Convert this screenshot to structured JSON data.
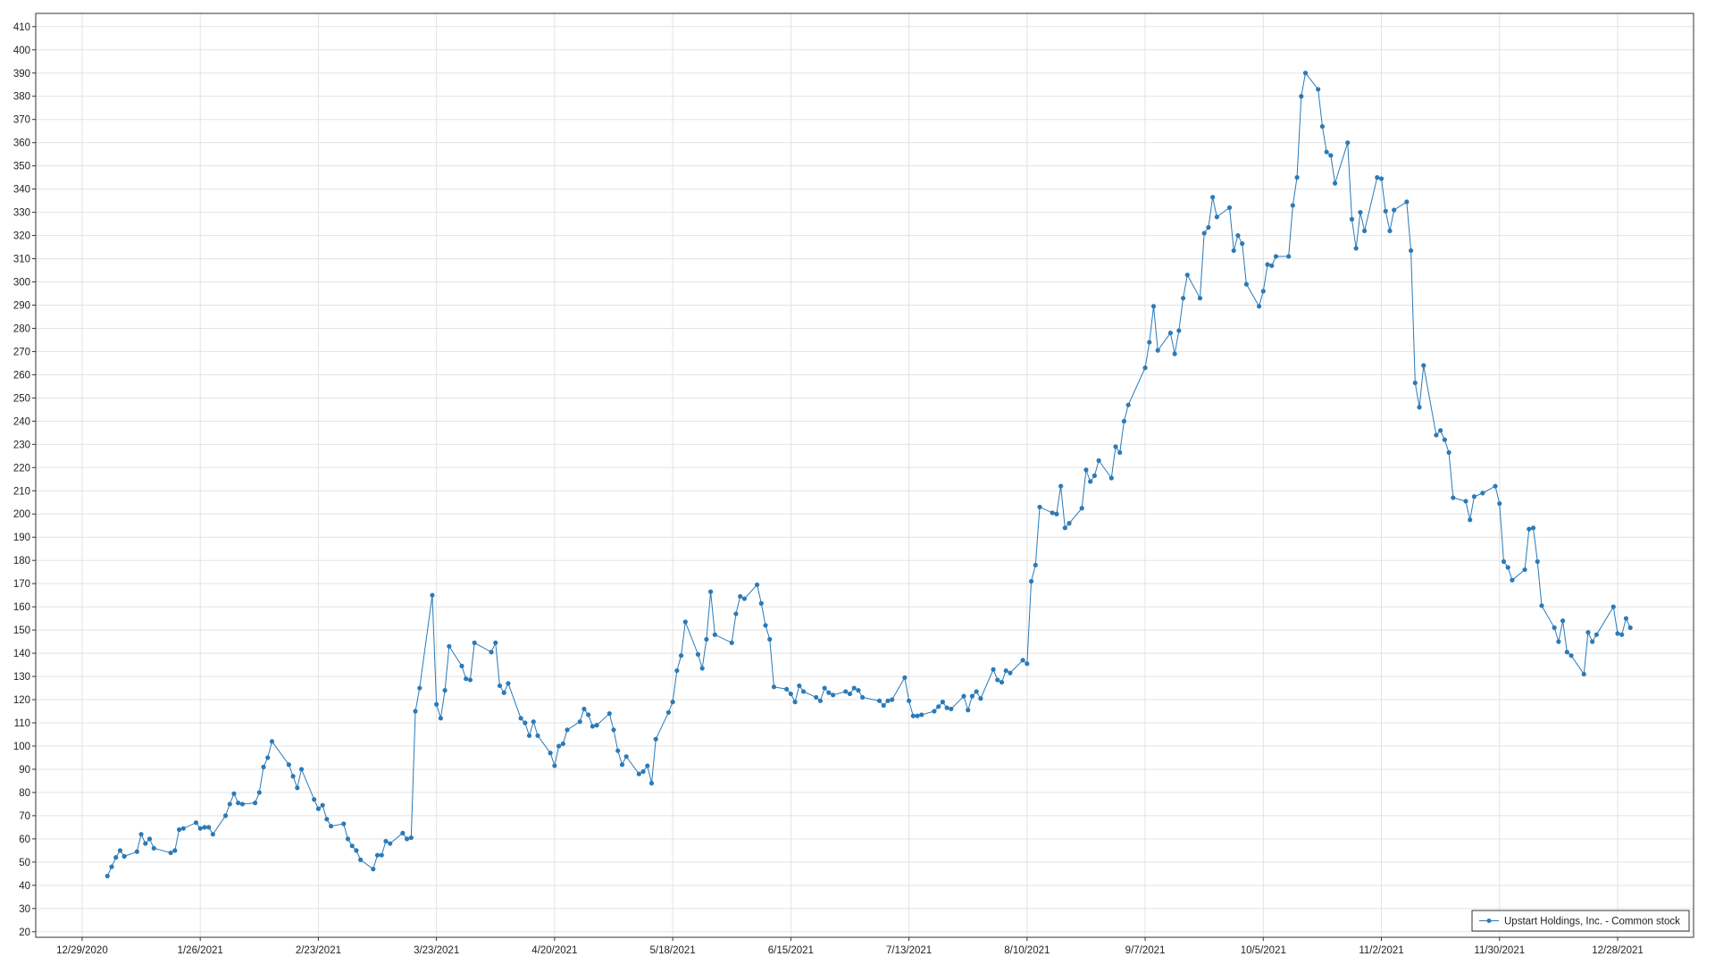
{
  "chart_data": {
    "type": "line",
    "grid": true,
    "legend": "lower right",
    "xlim": [
      "12/18/2020",
      "1/15/2022"
    ],
    "xticks": [
      "12/29/2020",
      "1/26/2021",
      "2/23/2021",
      "3/23/2021",
      "4/20/2021",
      "5/18/2021",
      "6/15/2021",
      "7/13/2021",
      "8/10/2021",
      "9/7/2021",
      "10/5/2021",
      "11/2/2021",
      "11/30/2021",
      "12/28/2021"
    ],
    "ylim": [
      17.6,
      415.7
    ],
    "yticks": [
      20,
      30,
      40,
      50,
      60,
      70,
      80,
      90,
      100,
      110,
      120,
      130,
      140,
      150,
      160,
      170,
      180,
      190,
      200,
      210,
      220,
      230,
      240,
      250,
      260,
      270,
      280,
      290,
      300,
      310,
      320,
      330,
      340,
      350,
      360,
      370,
      380,
      390,
      400,
      410
    ],
    "x": [
      "1/4/2021",
      "1/5/2021",
      "1/6/2021",
      "1/7/2021",
      "1/8/2021",
      "1/11/2021",
      "1/12/2021",
      "1/13/2021",
      "1/14/2021",
      "1/15/2021",
      "1/19/2021",
      "1/20/2021",
      "1/21/2021",
      "1/22/2021",
      "1/25/2021",
      "1/26/2021",
      "1/27/2021",
      "1/28/2021",
      "1/29/2021",
      "2/1/2021",
      "2/2/2021",
      "2/3/2021",
      "2/4/2021",
      "2/5/2021",
      "2/8/2021",
      "2/9/2021",
      "2/10/2021",
      "2/11/2021",
      "2/12/2021",
      "2/16/2021",
      "2/17/2021",
      "2/18/2021",
      "2/19/2021",
      "2/22/2021",
      "2/23/2021",
      "2/24/2021",
      "2/25/2021",
      "2/26/2021",
      "3/1/2021",
      "3/2/2021",
      "3/3/2021",
      "3/4/2021",
      "3/5/2021",
      "3/8/2021",
      "3/9/2021",
      "3/10/2021",
      "3/11/2021",
      "3/12/2021",
      "3/15/2021",
      "3/16/2021",
      "3/17/2021",
      "3/18/2021",
      "3/19/2021",
      "3/22/2021",
      "3/23/2021",
      "3/24/2021",
      "3/25/2021",
      "3/26/2021",
      "3/29/2021",
      "3/30/2021",
      "3/31/2021",
      "4/1/2021",
      "4/5/2021",
      "4/6/2021",
      "4/7/2021",
      "4/8/2021",
      "4/9/2021",
      "4/12/2021",
      "4/13/2021",
      "4/14/2021",
      "4/15/2021",
      "4/16/2021",
      "4/19/2021",
      "4/20/2021",
      "4/21/2021",
      "4/22/2021",
      "4/23/2021",
      "4/26/2021",
      "4/27/2021",
      "4/28/2021",
      "4/29/2021",
      "4/30/2021",
      "5/3/2021",
      "5/4/2021",
      "5/5/2021",
      "5/6/2021",
      "5/7/2021",
      "5/10/2021",
      "5/11/2021",
      "5/12/2021",
      "5/13/2021",
      "5/14/2021",
      "5/17/2021",
      "5/18/2021",
      "5/19/2021",
      "5/20/2021",
      "5/21/2021",
      "5/24/2021",
      "5/25/2021",
      "5/26/2021",
      "5/27/2021",
      "5/28/2021",
      "6/1/2021",
      "6/2/2021",
      "6/3/2021",
      "6/4/2021",
      "6/7/2021",
      "6/8/2021",
      "6/9/2021",
      "6/10/2021",
      "6/11/2021",
      "6/14/2021",
      "6/15/2021",
      "6/16/2021",
      "6/17/2021",
      "6/18/2021",
      "6/21/2021",
      "6/22/2021",
      "6/23/2021",
      "6/24/2021",
      "6/25/2021",
      "6/28/2021",
      "6/29/2021",
      "6/30/2021",
      "7/1/2021",
      "7/2/2021",
      "7/6/2021",
      "7/7/2021",
      "7/8/2021",
      "7/9/2021",
      "7/12/2021",
      "7/13/2021",
      "7/14/2021",
      "7/15/2021",
      "7/16/2021",
      "7/19/2021",
      "7/20/2021",
      "7/21/2021",
      "7/22/2021",
      "7/23/2021",
      "7/26/2021",
      "7/27/2021",
      "7/28/2021",
      "7/29/2021",
      "7/30/2021",
      "8/2/2021",
      "8/3/2021",
      "8/4/2021",
      "8/5/2021",
      "8/6/2021",
      "8/9/2021",
      "8/10/2021",
      "8/11/2021",
      "8/12/2021",
      "8/13/2021",
      "8/16/2021",
      "8/17/2021",
      "8/18/2021",
      "8/19/2021",
      "8/20/2021",
      "8/23/2021",
      "8/24/2021",
      "8/25/2021",
      "8/26/2021",
      "8/27/2021",
      "8/30/2021",
      "8/31/2021",
      "9/1/2021",
      "9/2/2021",
      "9/3/2021",
      "9/7/2021",
      "9/8/2021",
      "9/9/2021",
      "9/10/2021",
      "9/13/2021",
      "9/14/2021",
      "9/15/2021",
      "9/16/2021",
      "9/17/2021",
      "9/20/2021",
      "9/21/2021",
      "9/22/2021",
      "9/23/2021",
      "9/24/2021",
      "9/27/2021",
      "9/28/2021",
      "9/29/2021",
      "9/30/2021",
      "10/1/2021",
      "10/4/2021",
      "10/5/2021",
      "10/6/2021",
      "10/7/2021",
      "10/8/2021",
      "10/11/2021",
      "10/12/2021",
      "10/13/2021",
      "10/14/2021",
      "10/15/2021",
      "10/18/2021",
      "10/19/2021",
      "10/20/2021",
      "10/21/2021",
      "10/22/2021",
      "10/25/2021",
      "10/26/2021",
      "10/27/2021",
      "10/28/2021",
      "10/29/2021",
      "11/1/2021",
      "11/2/2021",
      "11/3/2021",
      "11/4/2021",
      "11/5/2021",
      "11/8/2021",
      "11/9/2021",
      "11/10/2021",
      "11/11/2021",
      "11/12/2021",
      "11/15/2021",
      "11/16/2021",
      "11/17/2021",
      "11/18/2021",
      "11/19/2021",
      "11/22/2021",
      "11/23/2021",
      "11/24/2021",
      "11/26/2021",
      "11/29/2021",
      "11/30/2021",
      "12/1/2021",
      "12/2/2021",
      "12/3/2021",
      "12/6/2021",
      "12/7/2021",
      "12/8/2021",
      "12/9/2021",
      "12/10/2021",
      "12/13/2021",
      "12/14/2021",
      "12/15/2021",
      "12/16/2021",
      "12/17/2021",
      "12/20/2021",
      "12/21/2021",
      "12/22/2021",
      "12/23/2021",
      "12/27/2021",
      "12/28/2021",
      "12/29/2021",
      "12/30/2021",
      "12/31/2021"
    ],
    "series": [
      {
        "name": "Upstart Holdings, Inc. - Common stock",
        "color": "#2a7ab8",
        "values": [
          44,
          48,
          52,
          55,
          52.5,
          54.5,
          62,
          58,
          60,
          56,
          54,
          55,
          64,
          64.5,
          67,
          64.5,
          65,
          65,
          62,
          70,
          75,
          79.5,
          75.5,
          75,
          75.5,
          80,
          91,
          95,
          102,
          92,
          87,
          82,
          90,
          77,
          73,
          74.5,
          68.5,
          65.5,
          66.5,
          60,
          57,
          55,
          51,
          47,
          53,
          53,
          59,
          58,
          62.5,
          60,
          60.5,
          115,
          125,
          165,
          118,
          112,
          124,
          143,
          134.5,
          129,
          128.5,
          144.5,
          140.5,
          144.5,
          126,
          123,
          127,
          112,
          110,
          104.5,
          110.5,
          104.5,
          97,
          91.5,
          100,
          101,
          107,
          110.5,
          116,
          113.5,
          108.5,
          109,
          114,
          107,
          98,
          92,
          95.5,
          88,
          89,
          91.5,
          84,
          103,
          114.5,
          119,
          132.5,
          139,
          153.5,
          139.5,
          133.5,
          146,
          166.5,
          148,
          144.5,
          157,
          164.5,
          163.5,
          169.5,
          161.5,
          152,
          146,
          125.5,
          124.5,
          122.5,
          119,
          126,
          123.5,
          121,
          119.5,
          125,
          123,
          122,
          123.5,
          122.5,
          125,
          124,
          121,
          119.5,
          117.5,
          119.5,
          120,
          129.5,
          119.5,
          113,
          113,
          113.5,
          115,
          117,
          119,
          116.5,
          116,
          121.5,
          115.5,
          121.5,
          123.5,
          120.5,
          133,
          128.5,
          127.5,
          132.5,
          131.5,
          137,
          135.5,
          171,
          178,
          203,
          200.5,
          200,
          212,
          194,
          196,
          202.5,
          219,
          214,
          216.5,
          223,
          215.5,
          229,
          226.5,
          240,
          247,
          263,
          274,
          289.5,
          270.5,
          278,
          269,
          279,
          293,
          303,
          293,
          321,
          323.5,
          336.5,
          328,
          332,
          313.5,
          320,
          316.5,
          299,
          289.5,
          296,
          307.5,
          307,
          311,
          311,
          333,
          345,
          380,
          390,
          383,
          367,
          356,
          354.5,
          342.5,
          360,
          327,
          314.5,
          330,
          322,
          345,
          344.5,
          330.5,
          322,
          331,
          334.5,
          313.5,
          256.5,
          246,
          264,
          234,
          236,
          232,
          226.5,
          207,
          205.5,
          197.5,
          207.5,
          209,
          212,
          204.5,
          179.5,
          177,
          171.5,
          176,
          193.5,
          194,
          179.5,
          160.5,
          151,
          145,
          154,
          140.5,
          139,
          131,
          149,
          145,
          148,
          160,
          148.5,
          148,
          155,
          151
        ]
      }
    ]
  }
}
